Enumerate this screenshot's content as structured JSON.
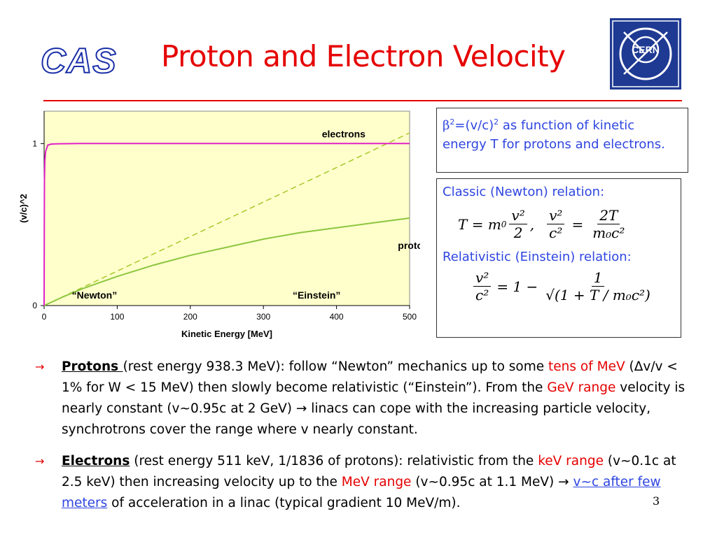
{
  "header": {
    "logo_text": "CAS",
    "title": "Proton and Electron Velocity",
    "cern_logo_text": "CERN"
  },
  "colors": {
    "title": "#e60000",
    "electrons_curve": "#e020c8",
    "protons_curve": "#8cc63f",
    "newton_line": "#a8c82a",
    "plot_background": "#ffffcc",
    "caption_text": "#2f46e0",
    "highlight": "#e60000",
    "cern_logo": "#1f3a93"
  },
  "chart_data": {
    "type": "line",
    "title": "",
    "xlabel": "Kinetic Energy [MeV]",
    "ylabel": "(v/c)^2",
    "xlim": [
      0,
      500
    ],
    "ylim": [
      0,
      1.2
    ],
    "x_ticks": [
      "0",
      "100",
      "200",
      "300",
      "400",
      "500"
    ],
    "y_ticks": [
      "0",
      "1"
    ],
    "grid": false,
    "series": [
      {
        "name": "electrons",
        "style": "solid",
        "x": [
          0,
          0.25,
          0.5,
          1,
          2,
          5,
          10,
          20,
          50,
          100,
          200,
          300,
          400,
          500
        ],
        "values": [
          0,
          0.55,
          0.78,
          0.89,
          0.95,
          0.99,
          0.997,
          0.999,
          1.0,
          1.0,
          1.0,
          1.0,
          1.0,
          1.0
        ]
      },
      {
        "name": "protons",
        "style": "solid",
        "x": [
          0,
          25,
          50,
          100,
          150,
          200,
          250,
          300,
          350,
          400,
          450,
          500
        ],
        "values": [
          0,
          0.052,
          0.1,
          0.18,
          0.25,
          0.31,
          0.36,
          0.41,
          0.45,
          0.48,
          0.51,
          0.54
        ]
      },
      {
        "name": "",
        "style": "dashed",
        "x": [
          0,
          100,
          200,
          300,
          400,
          500
        ],
        "values": [
          0,
          0.213,
          0.426,
          0.639,
          0.852,
          1.066
        ]
      }
    ],
    "annotations": [
      "electrons",
      "protons",
      "“Newton”",
      "“Einstein”"
    ]
  },
  "caption": {
    "beta": "β",
    "sup": "2",
    "eq": "=(v/c)",
    "sup2": "2",
    "text": " as function of kinetic energy T for protons and electrons."
  },
  "relations": {
    "classic_label": "Classic (Newton) relation:",
    "relativistic_label": "Relativistic (Einstein) relation:",
    "f1_lhs": "T = m",
    "f1_sub": "0",
    "f1_num": "v²",
    "f1_den": "2",
    "f2_num": "v²",
    "f2_den": "c²",
    "f2_rnum": "2T",
    "f2_rden": "m₀c²",
    "f3_num": "v²",
    "f3_den": "c²",
    "f3_rhs": "= 1 −",
    "f3_rnum": "1",
    "f3_rden": "√(1 + T / m₀c²)"
  },
  "bullets": [
    {
      "arrow": "→",
      "b1": "Protons ",
      "t1": "(rest energy 938.3 MeV): follow “Newton” mechanics up to some ",
      "r1": "tens of MeV",
      "t2": " (Δv/v < 1% for W < 15 MeV) then slowly become relativistic (“Einstein”). From the ",
      "r2": "GeV range",
      "t3": " velocity is nearly constant (v~0.95c at 2 GeV) → linacs can cope with the increasing particle velocity, synchrotrons cover the range where v  nearly constant."
    },
    {
      "arrow": "→",
      "b1": "Electrons",
      "t1": " (rest energy 511 keV, 1/1836 of protons): relativistic from the ",
      "r1": "keV range",
      "t2": " (v~0.1c at 2.5 keV) then increasing velocity up to the ",
      "r2": "MeV range",
      "t3": " (v~0.95c at 1.1 MeV) → ",
      "link": "v~c after few meters",
      "t4": " of acceleration in a linac (typical gradient 10 MeV/m)."
    }
  ],
  "page_number": "3"
}
